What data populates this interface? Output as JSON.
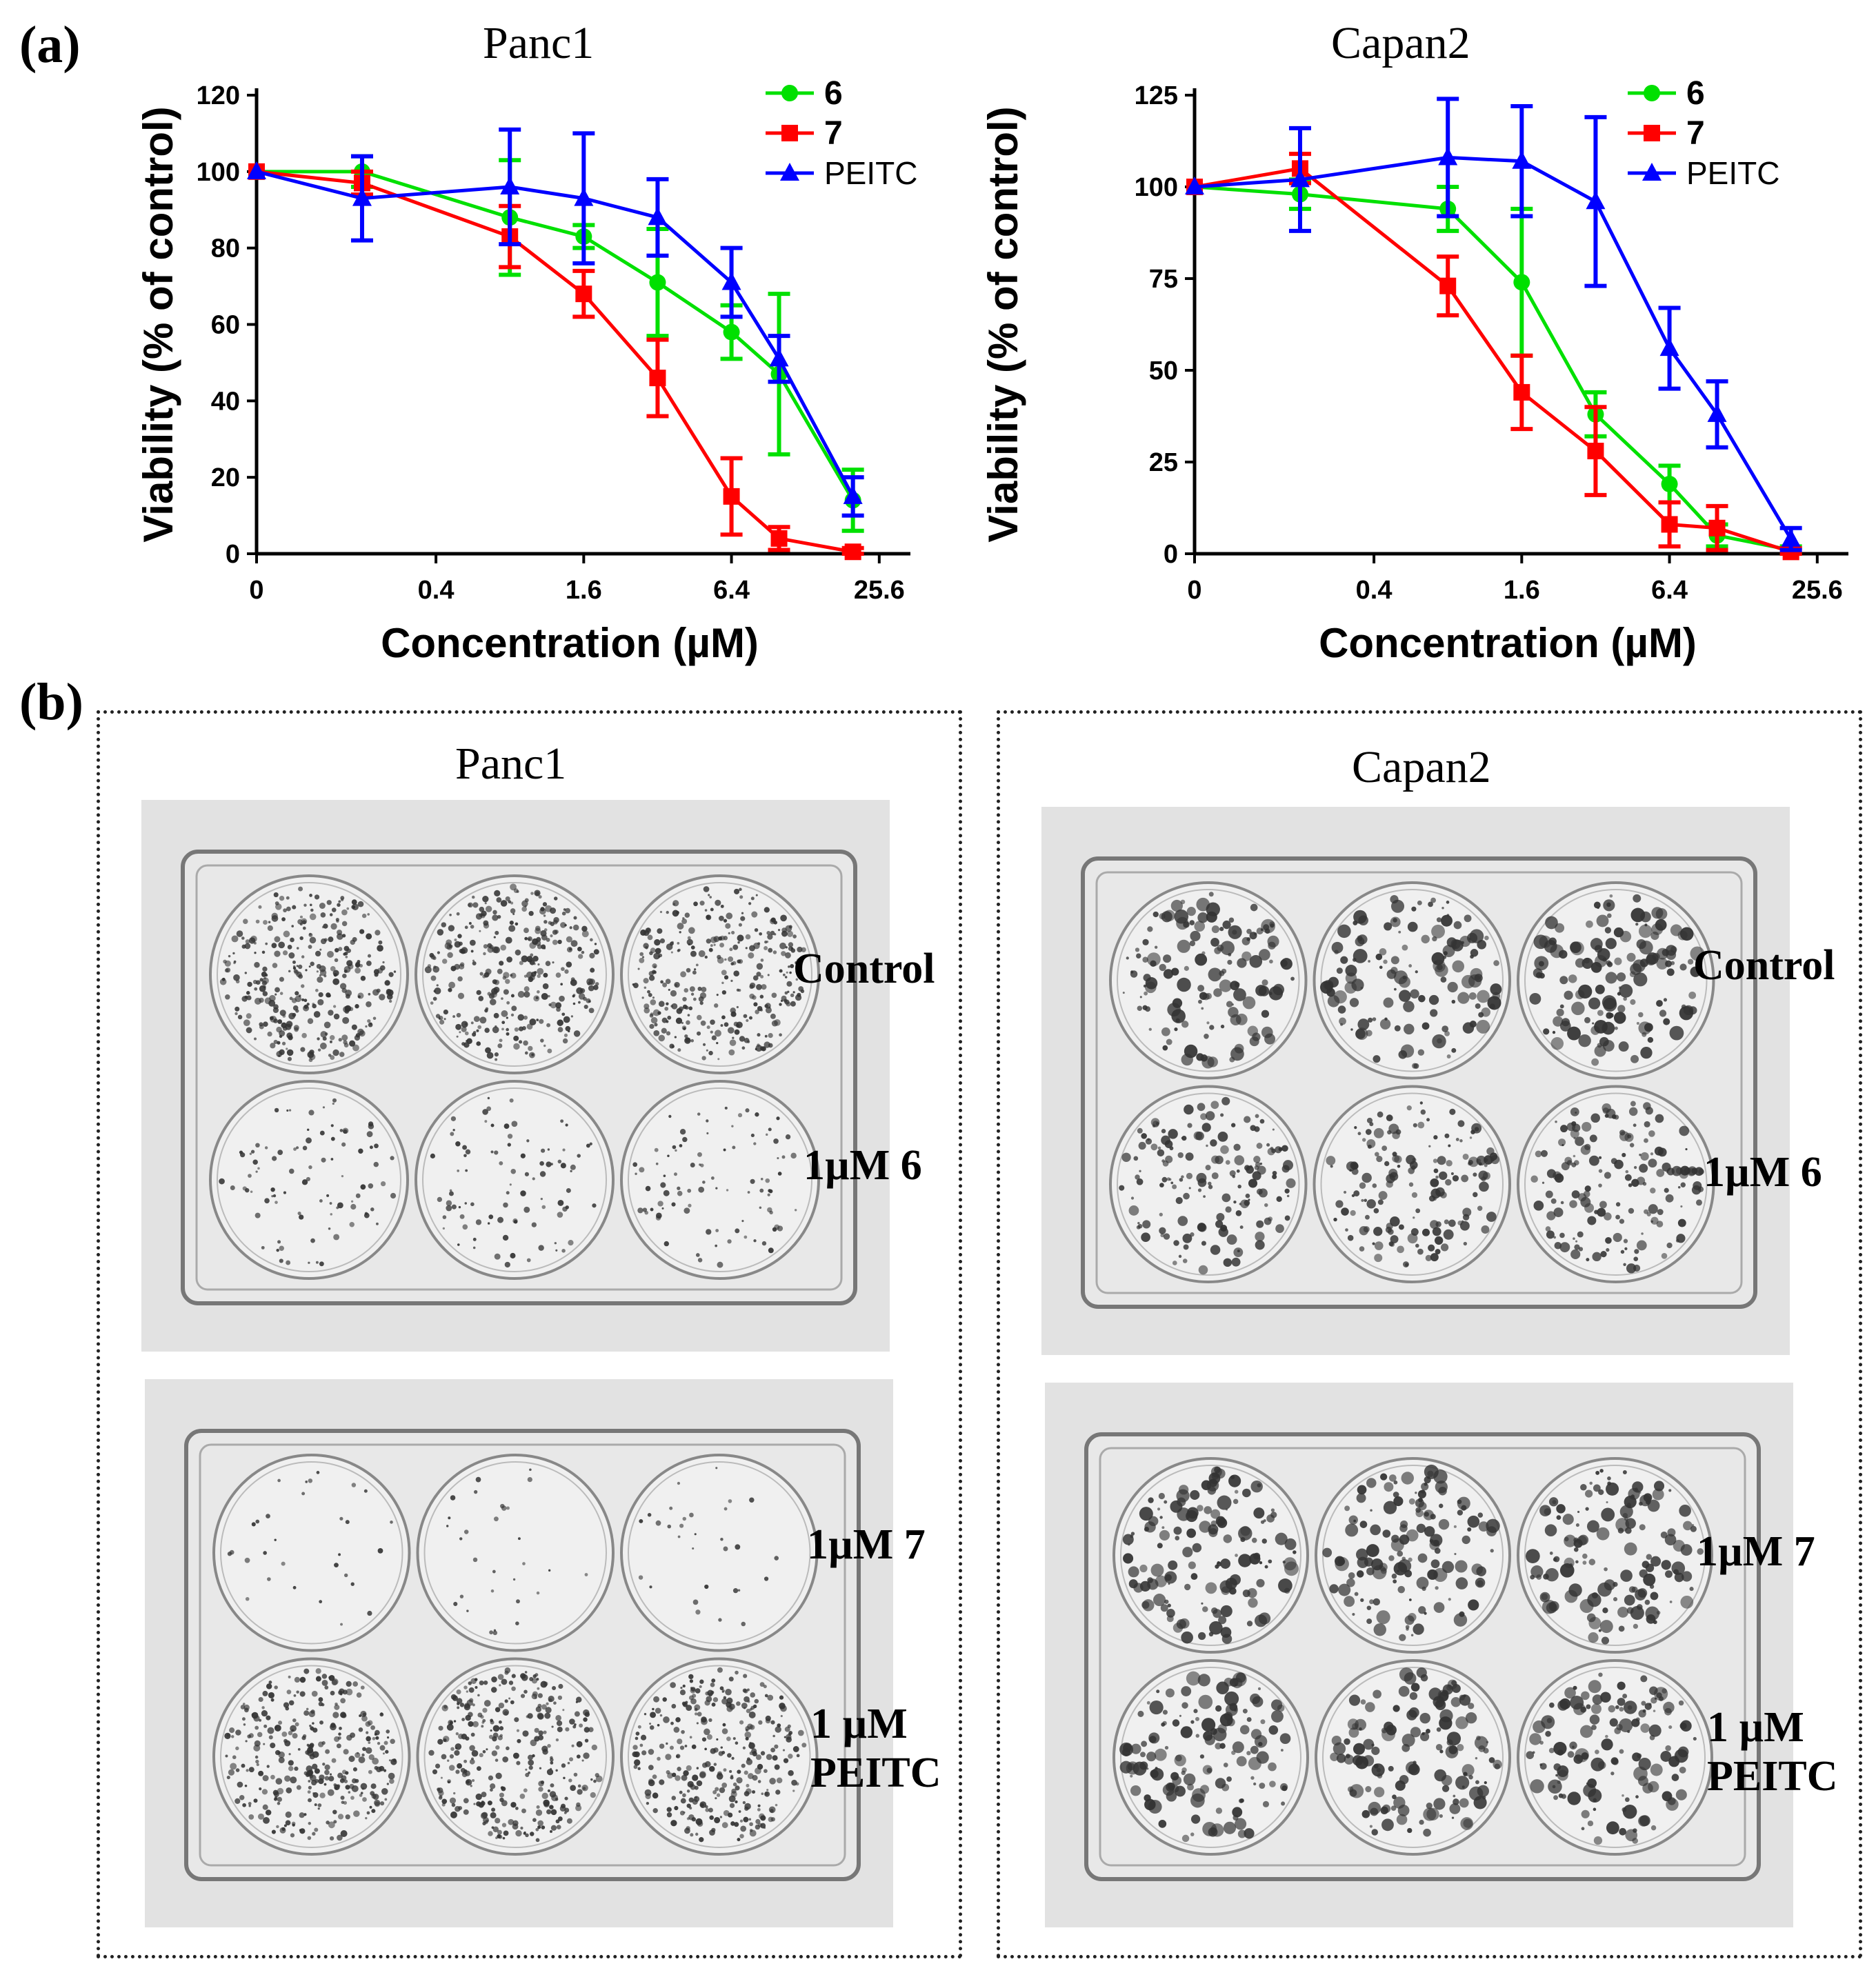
{
  "figure": {
    "panel_a_label": "(a)",
    "panel_b_label": "(b)"
  },
  "chart_data": [
    {
      "type": "line",
      "title": "Panc1",
      "xlabel": "Concentration (µM)",
      "ylabel": "Viability (% of control)",
      "x_ticks": [
        "0",
        "0.4",
        "1.6",
        "6.4",
        "25.6"
      ],
      "x_scale": "log2 (0 plotted at left origin)",
      "x": [
        0,
        0.2,
        0.8,
        1.6,
        3.2,
        6.4,
        10,
        20
      ],
      "ylim": [
        0,
        120
      ],
      "y_ticks": [
        0,
        20,
        40,
        60,
        80,
        100,
        120
      ],
      "legend_position": "top-right",
      "series": [
        {
          "name": "6",
          "color": "#00e000",
          "marker": "circle",
          "values": [
            100,
            100,
            88,
            83,
            71,
            58,
            47,
            14
          ],
          "errors": [
            0,
            4,
            15,
            3,
            14,
            7,
            21,
            8
          ]
        },
        {
          "name": "7",
          "color": "#ff0000",
          "marker": "square",
          "values": [
            100,
            97,
            83,
            68,
            46,
            15,
            4,
            0.5
          ],
          "errors": [
            0,
            3,
            8,
            6,
            10,
            10,
            3,
            1
          ]
        },
        {
          "name": "PEITC",
          "color": "#0000ff",
          "marker": "triangle",
          "values": [
            100,
            93,
            96,
            93,
            88,
            71,
            51,
            15
          ],
          "errors": [
            0,
            11,
            15,
            17,
            10,
            9,
            6,
            5
          ]
        }
      ]
    },
    {
      "type": "line",
      "title": "Capan2",
      "xlabel": "Concentration (µM)",
      "ylabel": "Viability (% of control)",
      "x_ticks": [
        "0",
        "0.4",
        "1.6",
        "6.4",
        "25.6"
      ],
      "x_scale": "log2 (0 plotted at left origin)",
      "x": [
        0,
        0.2,
        0.8,
        1.6,
        3.2,
        6.4,
        10,
        20
      ],
      "ylim": [
        0,
        125
      ],
      "y_ticks": [
        0,
        25,
        50,
        75,
        100,
        125
      ],
      "legend_position": "top-right",
      "series": [
        {
          "name": "6",
          "color": "#00e000",
          "marker": "circle",
          "values": [
            100,
            98,
            94,
            74,
            38,
            19,
            5,
            1
          ],
          "errors": [
            0,
            4,
            6,
            20,
            6,
            5,
            3,
            1
          ]
        },
        {
          "name": "7",
          "color": "#ff0000",
          "marker": "square",
          "values": [
            100,
            105,
            73,
            44,
            28,
            8,
            7,
            0.5
          ],
          "errors": [
            0,
            4,
            8,
            10,
            12,
            6,
            6,
            1
          ]
        },
        {
          "name": "PEITC",
          "color": "#0000ff",
          "marker": "triangle",
          "values": [
            100,
            102,
            108,
            107,
            96,
            56,
            38,
            4
          ],
          "errors": [
            0,
            14,
            16,
            15,
            23,
            11,
            9,
            3
          ]
        }
      ]
    }
  ],
  "panel_b": {
    "left": {
      "title": "Panc1",
      "labels": {
        "control": "Control",
        "c6": "1µM 6",
        "c7": "1µM 7",
        "peitc_line1": "1 µM",
        "peitc_line2": "PEITC"
      }
    },
    "right": {
      "title": "Capan2",
      "labels": {
        "control": "Control",
        "c6": "1µM 6",
        "c7": "1µM 7",
        "peitc_line1": "1 µM",
        "peitc_line2": "PEITC"
      }
    }
  }
}
